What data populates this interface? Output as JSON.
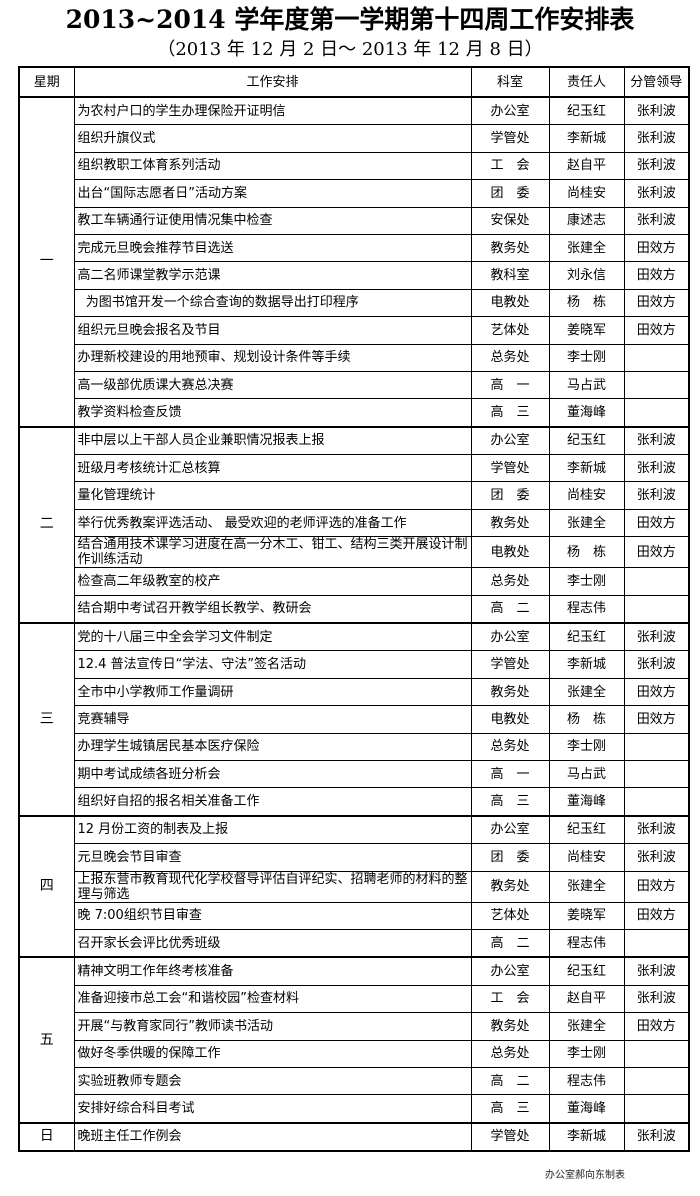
{
  "title": "2013~2014 学年度第一学期第十四周工作安排表",
  "subtitle": "（2013 年 12 月 2 日～ 2013 年 12 月 8 日）",
  "headers": {
    "day": "星期",
    "task": "工作安排",
    "dept": "科室",
    "person": "责任人",
    "leader": "分管领导"
  },
  "days": [
    {
      "day": "一",
      "rows": [
        {
          "task": "为农村户口的学生办理保险开证明信",
          "dept": "办公室",
          "person": "纪玉红",
          "leader": "张利波"
        },
        {
          "task": "组织升旗仪式",
          "dept": "学管处",
          "person": "李新城",
          "leader": "张利波"
        },
        {
          "task": "组织教职工体育系列活动",
          "dept": "工　会",
          "person": "赵自平",
          "leader": "张利波"
        },
        {
          "task": "出台“国际志愿者日”活动方案",
          "dept": "团　委",
          "person": "尚桂安",
          "leader": "张利波"
        },
        {
          "task": "教工车辆通行证使用情况集中检查",
          "dept": "安保处",
          "person": "康述志",
          "leader": "张利波"
        },
        {
          "task": "完成元旦晚会推荐节目选送",
          "dept": "教务处",
          "person": "张建全",
          "leader": "田效方"
        },
        {
          "task": "高二名师课堂教学示范课",
          "dept": "教科室",
          "person": "刘永信",
          "leader": "田效方"
        },
        {
          "task": "  为图书馆开发一个综合查询的数据导出打印程序",
          "dept": "电教处",
          "person": "杨　栋",
          "leader": "田效方"
        },
        {
          "task": "组织元旦晚会报名及节目",
          "dept": "艺体处",
          "person": "姜晓军",
          "leader": "田效方"
        },
        {
          "task": "办理新校建设的用地预审、规划设计条件等手续",
          "dept": "总务处",
          "person": "李士刚",
          "leader": ""
        },
        {
          "task": "高一级部优质课大赛总决赛",
          "dept": "高　一",
          "person": "马占武",
          "leader": ""
        },
        {
          "task": "教学资料检查反馈",
          "dept": "高　三",
          "person": "董海峰",
          "leader": ""
        }
      ]
    },
    {
      "day": "二",
      "rows": [
        {
          "task": "非中层以上干部人员企业兼职情况报表上报",
          "dept": "办公室",
          "person": "纪玉红",
          "leader": "张利波"
        },
        {
          "task": "班级月考核统计汇总核算",
          "dept": "学管处",
          "person": "李新城",
          "leader": "张利波"
        },
        {
          "task": "量化管理统计",
          "dept": "团　委",
          "person": "尚桂安",
          "leader": "张利波"
        },
        {
          "task": "举行优秀教案评选活动、 最受欢迎的老师评选的准备工作",
          "dept": "教务处",
          "person": "张建全",
          "leader": "田效方"
        },
        {
          "task": "结合通用技术课学习进度在高一分木工、钳工、结构三类开展设计制作训练活动",
          "dept": "电教处",
          "person": "杨　栋",
          "leader": "田效方"
        },
        {
          "task": "检查高二年级教室的校产",
          "dept": "总务处",
          "person": "李士刚",
          "leader": ""
        },
        {
          "task": "结合期中考试召开教学组长教学、教研会",
          "dept": "高　二",
          "person": "程志伟",
          "leader": ""
        }
      ]
    },
    {
      "day": "三",
      "rows": [
        {
          "task": "党的十八届三中全会学习文件制定",
          "dept": "办公室",
          "person": "纪玉红",
          "leader": "张利波"
        },
        {
          "task": "12.4 普法宣传日“学法、守法”签名活动",
          "dept": "学管处",
          "person": "李新城",
          "leader": "张利波"
        },
        {
          "task": "全市中小学教师工作量调研",
          "dept": "教务处",
          "person": "张建全",
          "leader": "田效方"
        },
        {
          "task": "竞赛辅导",
          "dept": "电教处",
          "person": "杨　栋",
          "leader": "田效方"
        },
        {
          "task": "办理学生城镇居民基本医疗保险",
          "dept": "总务处",
          "person": "李士刚",
          "leader": ""
        },
        {
          "task": "期中考试成绩各班分析会",
          "dept": "高　一",
          "person": "马占武",
          "leader": ""
        },
        {
          "task": "组织好自招的报名相关准备工作",
          "dept": "高　三",
          "person": "董海峰",
          "leader": ""
        }
      ]
    },
    {
      "day": "四",
      "rows": [
        {
          "task": "12 月份工资的制表及上报",
          "dept": "办公室",
          "person": "纪玉红",
          "leader": "张利波"
        },
        {
          "task": "元旦晚会节目审查",
          "dept": "团　委",
          "person": "尚桂安",
          "leader": "张利波"
        },
        {
          "task": "上报东营市教育现代化学校督导评估自评纪实、招聘老师的材料的整理与筛选",
          "dept": "教务处",
          "person": "张建全",
          "leader": "田效方"
        },
        {
          "task": "晚 7:00组织节目审查",
          "dept": "艺体处",
          "person": "姜晓军",
          "leader": "田效方"
        },
        {
          "task": "召开家长会评比优秀班级",
          "dept": "高　二",
          "person": "程志伟",
          "leader": ""
        }
      ]
    },
    {
      "day": "五",
      "rows": [
        {
          "task": "精神文明工作年终考核准备",
          "dept": "办公室",
          "person": "纪玉红",
          "leader": "张利波"
        },
        {
          "task": "准备迎接市总工会“和谐校园”检查材料",
          "dept": "工　会",
          "person": "赵自平",
          "leader": "张利波"
        },
        {
          "task": "开展“与教育家同行”教师读书活动",
          "dept": "教务处",
          "person": "张建全",
          "leader": "田效方"
        },
        {
          "task": "做好冬季供暖的保障工作",
          "dept": "总务处",
          "person": "李士刚",
          "leader": ""
        },
        {
          "task": "实验班教师专题会",
          "dept": "高　二",
          "person": "程志伟",
          "leader": ""
        },
        {
          "task": "安排好综合科目考试",
          "dept": "高　三",
          "person": "董海峰",
          "leader": ""
        }
      ]
    },
    {
      "day": "日",
      "rows": [
        {
          "task": "晚班主任工作例会",
          "dept": "学管处",
          "person": "李新城",
          "leader": "张利波"
        }
      ]
    }
  ],
  "footer": "办公室郝向东制表"
}
